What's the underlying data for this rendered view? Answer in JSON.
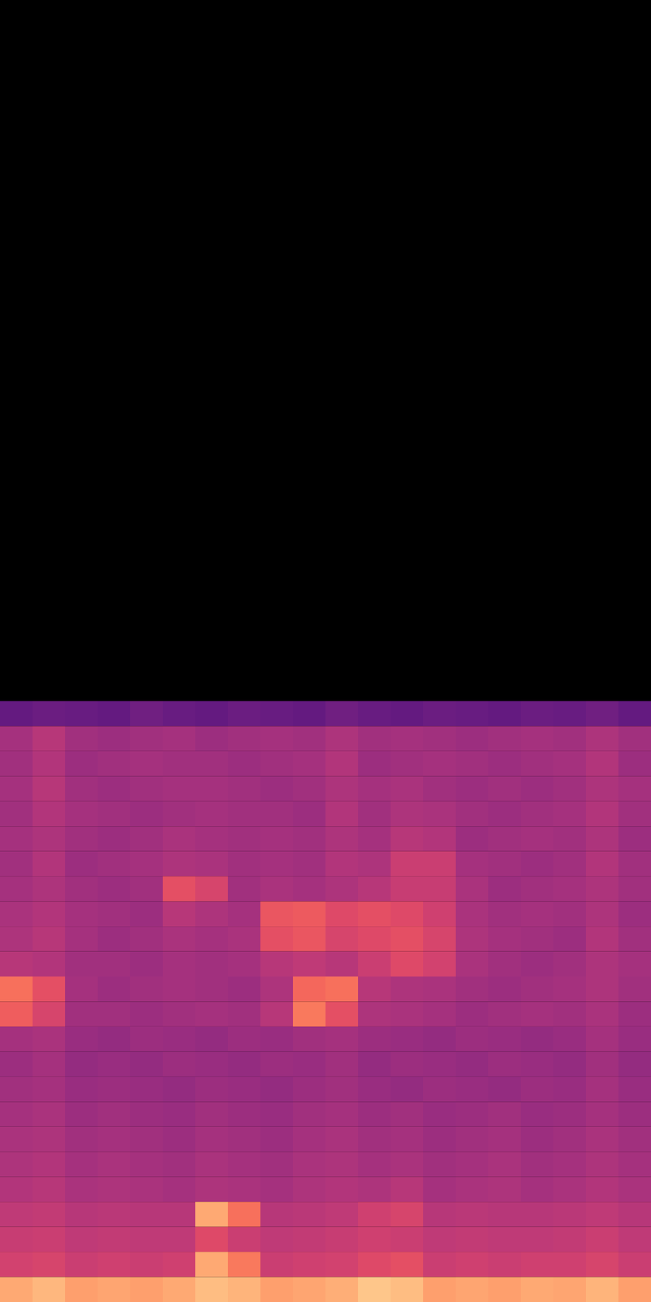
{
  "chart_data": {
    "type": "heatmap",
    "color": "magma",
    "tick_labels": false,
    "xlim": [
      0,
      20
    ],
    "ylim": [
      0,
      52
    ],
    "color_range": [
      0,
      1
    ],
    "cells": [
      [
        0.3,
        0.32,
        0.31,
        0.3,
        0.33,
        0.31,
        0.3,
        0.32,
        0.31,
        0.3,
        0.33,
        0.31,
        0.3,
        0.32,
        0.31,
        0.3,
        0.32,
        0.31,
        0.33,
        0.3
      ],
      [
        0.46,
        0.5,
        0.45,
        0.44,
        0.45,
        0.46,
        0.44,
        0.45,
        0.46,
        0.45,
        0.48,
        0.45,
        0.46,
        0.45,
        0.44,
        0.45,
        0.46,
        0.45,
        0.48,
        0.45
      ],
      [
        0.45,
        0.49,
        0.44,
        0.45,
        0.46,
        0.45,
        0.45,
        0.44,
        0.45,
        0.46,
        0.49,
        0.44,
        0.45,
        0.46,
        0.45,
        0.44,
        0.45,
        0.46,
        0.49,
        0.44
      ],
      [
        0.46,
        0.5,
        0.45,
        0.44,
        0.45,
        0.46,
        0.46,
        0.45,
        0.44,
        0.45,
        0.48,
        0.46,
        0.47,
        0.45,
        0.44,
        0.45,
        0.44,
        0.45,
        0.48,
        0.46
      ],
      [
        0.45,
        0.49,
        0.46,
        0.45,
        0.44,
        0.45,
        0.46,
        0.45,
        0.45,
        0.44,
        0.49,
        0.45,
        0.48,
        0.47,
        0.45,
        0.44,
        0.45,
        0.46,
        0.49,
        0.45
      ],
      [
        0.46,
        0.48,
        0.45,
        0.44,
        0.45,
        0.47,
        0.46,
        0.45,
        0.46,
        0.45,
        0.48,
        0.46,
        0.5,
        0.49,
        0.44,
        0.45,
        0.46,
        0.45,
        0.48,
        0.44
      ],
      [
        0.45,
        0.49,
        0.44,
        0.45,
        0.46,
        0.48,
        0.47,
        0.45,
        0.46,
        0.45,
        0.49,
        0.48,
        0.55,
        0.55,
        0.46,
        0.45,
        0.44,
        0.45,
        0.49,
        0.45
      ],
      [
        0.46,
        0.48,
        0.45,
        0.44,
        0.45,
        0.62,
        0.58,
        0.45,
        0.47,
        0.46,
        0.48,
        0.5,
        0.54,
        0.54,
        0.47,
        0.44,
        0.45,
        0.46,
        0.48,
        0.45
      ],
      [
        0.47,
        0.49,
        0.46,
        0.45,
        0.44,
        0.5,
        0.48,
        0.46,
        0.64,
        0.65,
        0.6,
        0.62,
        0.6,
        0.56,
        0.47,
        0.45,
        0.46,
        0.45,
        0.48,
        0.44
      ],
      [
        0.48,
        0.5,
        0.46,
        0.44,
        0.45,
        0.47,
        0.46,
        0.47,
        0.62,
        0.64,
        0.58,
        0.6,
        0.62,
        0.58,
        0.48,
        0.46,
        0.45,
        0.44,
        0.49,
        0.45
      ],
      [
        0.5,
        0.49,
        0.45,
        0.45,
        0.44,
        0.46,
        0.45,
        0.46,
        0.5,
        0.52,
        0.5,
        0.55,
        0.6,
        0.57,
        0.47,
        0.45,
        0.44,
        0.45,
        0.48,
        0.46
      ],
      [
        0.7,
        0.62,
        0.46,
        0.44,
        0.45,
        0.46,
        0.45,
        0.44,
        0.48,
        0.68,
        0.7,
        0.5,
        0.48,
        0.47,
        0.45,
        0.44,
        0.45,
        0.46,
        0.48,
        0.45
      ],
      [
        0.66,
        0.58,
        0.45,
        0.45,
        0.44,
        0.45,
        0.46,
        0.45,
        0.5,
        0.72,
        0.62,
        0.48,
        0.47,
        0.46,
        0.44,
        0.45,
        0.46,
        0.45,
        0.47,
        0.44
      ],
      [
        0.46,
        0.47,
        0.43,
        0.42,
        0.44,
        0.43,
        0.42,
        0.44,
        0.43,
        0.45,
        0.46,
        0.44,
        0.43,
        0.42,
        0.44,
        0.43,
        0.42,
        0.43,
        0.46,
        0.43
      ],
      [
        0.44,
        0.46,
        0.42,
        0.43,
        0.42,
        0.44,
        0.43,
        0.42,
        0.44,
        0.43,
        0.45,
        0.42,
        0.44,
        0.43,
        0.42,
        0.44,
        0.43,
        0.42,
        0.45,
        0.42
      ],
      [
        0.45,
        0.46,
        0.43,
        0.44,
        0.43,
        0.42,
        0.44,
        0.43,
        0.42,
        0.44,
        0.45,
        0.43,
        0.42,
        0.44,
        0.43,
        0.42,
        0.44,
        0.43,
        0.46,
        0.43
      ],
      [
        0.46,
        0.47,
        0.44,
        0.45,
        0.44,
        0.43,
        0.45,
        0.44,
        0.43,
        0.45,
        0.46,
        0.44,
        0.45,
        0.43,
        0.44,
        0.45,
        0.43,
        0.44,
        0.46,
        0.44
      ],
      [
        0.47,
        0.48,
        0.45,
        0.46,
        0.45,
        0.44,
        0.46,
        0.45,
        0.44,
        0.46,
        0.47,
        0.45,
        0.46,
        0.44,
        0.45,
        0.46,
        0.44,
        0.45,
        0.47,
        0.45
      ],
      [
        0.48,
        0.49,
        0.46,
        0.47,
        0.46,
        0.45,
        0.47,
        0.46,
        0.45,
        0.47,
        0.48,
        0.46,
        0.47,
        0.45,
        0.46,
        0.47,
        0.45,
        0.46,
        0.48,
        0.46
      ],
      [
        0.49,
        0.5,
        0.47,
        0.48,
        0.47,
        0.46,
        0.48,
        0.47,
        0.46,
        0.48,
        0.49,
        0.48,
        0.5,
        0.46,
        0.47,
        0.48,
        0.46,
        0.47,
        0.49,
        0.47
      ],
      [
        0.52,
        0.53,
        0.5,
        0.51,
        0.5,
        0.5,
        0.82,
        0.7,
        0.5,
        0.51,
        0.52,
        0.56,
        0.58,
        0.5,
        0.51,
        0.5,
        0.5,
        0.51,
        0.52,
        0.5
      ],
      [
        0.54,
        0.55,
        0.52,
        0.53,
        0.52,
        0.52,
        0.6,
        0.55,
        0.52,
        0.53,
        0.54,
        0.56,
        0.55,
        0.52,
        0.53,
        0.52,
        0.52,
        0.53,
        0.55,
        0.52
      ],
      [
        0.57,
        0.58,
        0.55,
        0.56,
        0.55,
        0.56,
        0.82,
        0.72,
        0.55,
        0.56,
        0.57,
        0.6,
        0.62,
        0.55,
        0.56,
        0.55,
        0.56,
        0.56,
        0.58,
        0.55
      ],
      [
        0.82,
        0.85,
        0.8,
        0.81,
        0.8,
        0.82,
        0.86,
        0.84,
        0.8,
        0.81,
        0.83,
        0.88,
        0.86,
        0.8,
        0.81,
        0.8,
        0.82,
        0.81,
        0.84,
        0.8
      ]
    ]
  }
}
